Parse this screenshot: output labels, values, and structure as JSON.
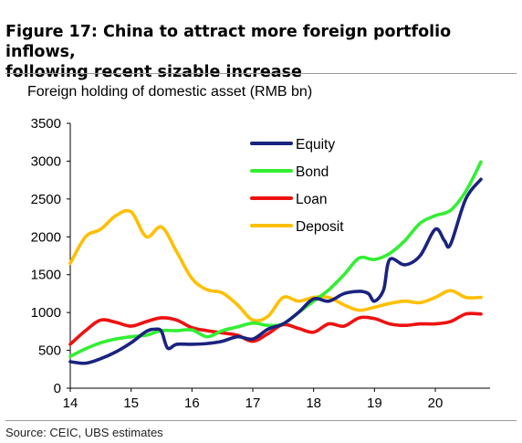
{
  "figure": {
    "title_line1": "Figure 17: China to attract more foreign portfolio inflows,",
    "title_line2": "following recent sizable increase",
    "subtitle": "Foreign holding of domestic asset (RMB bn)",
    "source": "Source: CEIC, UBS estimates"
  },
  "chart_data": {
    "type": "line",
    "title": "Figure 17: China to attract more foreign portfolio inflows, following recent sizable increase",
    "ylabel": "Foreign holding of domestic asset (RMB bn)",
    "xlabel": "",
    "ylim": [
      0,
      3500
    ],
    "yticks": [
      0,
      500,
      1000,
      1500,
      2000,
      2500,
      3000,
      3500
    ],
    "xlim": [
      2014.0,
      2020.9
    ],
    "xticks": [
      {
        "value": 2014,
        "label": "14"
      },
      {
        "value": 2015,
        "label": "15"
      },
      {
        "value": 2016,
        "label": "16"
      },
      {
        "value": 2017,
        "label": "17"
      },
      {
        "value": 2018,
        "label": "18"
      },
      {
        "value": 2019,
        "label": "19"
      },
      {
        "value": 2020,
        "label": "20"
      }
    ],
    "grid": false,
    "legend_position": "top-right",
    "series": [
      {
        "name": "Equity",
        "color": "#1a237e",
        "x": [
          2014.0,
          2014.25,
          2014.5,
          2014.75,
          2015.0,
          2015.25,
          2015.4,
          2015.5,
          2015.6,
          2015.75,
          2016.0,
          2016.25,
          2016.5,
          2016.75,
          2017.0,
          2017.25,
          2017.5,
          2017.75,
          2018.0,
          2018.25,
          2018.5,
          2018.75,
          2018.9,
          2019.0,
          2019.15,
          2019.25,
          2019.5,
          2019.75,
          2020.0,
          2020.15,
          2020.25,
          2020.5,
          2020.75
        ],
        "y": [
          350,
          330,
          390,
          480,
          600,
          750,
          780,
          750,
          530,
          580,
          580,
          590,
          620,
          680,
          650,
          780,
          850,
          1000,
          1180,
          1150,
          1250,
          1280,
          1250,
          1150,
          1300,
          1700,
          1630,
          1750,
          2100,
          1950,
          1900,
          2500,
          2760
        ]
      },
      {
        "name": "Bond",
        "color": "#33ee33",
        "x": [
          2014.0,
          2014.25,
          2014.5,
          2014.75,
          2015.0,
          2015.25,
          2015.5,
          2015.75,
          2016.0,
          2016.25,
          2016.5,
          2016.75,
          2017.0,
          2017.25,
          2017.5,
          2017.75,
          2018.0,
          2018.25,
          2018.5,
          2018.75,
          2019.0,
          2019.25,
          2019.5,
          2019.75,
          2020.0,
          2020.25,
          2020.5,
          2020.75
        ],
        "y": [
          420,
          520,
          600,
          650,
          680,
          700,
          760,
          760,
          770,
          680,
          760,
          810,
          860,
          830,
          850,
          1000,
          1150,
          1300,
          1500,
          1720,
          1700,
          1780,
          1950,
          2180,
          2280,
          2350,
          2600,
          2990
        ]
      },
      {
        "name": "Loan",
        "color": "#ee1111",
        "x": [
          2014.0,
          2014.25,
          2014.5,
          2014.75,
          2015.0,
          2015.25,
          2015.5,
          2015.75,
          2016.0,
          2016.25,
          2016.5,
          2016.75,
          2017.0,
          2017.25,
          2017.5,
          2017.75,
          2018.0,
          2018.25,
          2018.5,
          2018.75,
          2019.0,
          2019.25,
          2019.5,
          2019.75,
          2020.0,
          2020.25,
          2020.5,
          2020.75
        ],
        "y": [
          580,
          760,
          900,
          870,
          820,
          880,
          930,
          900,
          800,
          760,
          730,
          700,
          620,
          720,
          840,
          790,
          740,
          850,
          820,
          930,
          920,
          850,
          830,
          850,
          850,
          880,
          980,
          980
        ]
      },
      {
        "name": "Deposit",
        "color": "#ffbf00",
        "x": [
          2014.0,
          2014.25,
          2014.5,
          2014.75,
          2015.0,
          2015.25,
          2015.5,
          2015.75,
          2016.0,
          2016.25,
          2016.5,
          2016.75,
          2017.0,
          2017.25,
          2017.5,
          2017.75,
          2018.0,
          2018.25,
          2018.5,
          2018.75,
          2019.0,
          2019.25,
          2019.5,
          2019.75,
          2020.0,
          2020.25,
          2020.5,
          2020.75
        ],
        "y": [
          1650,
          2000,
          2100,
          2280,
          2330,
          2000,
          2130,
          1800,
          1450,
          1300,
          1260,
          1100,
          900,
          950,
          1200,
          1150,
          1200,
          1200,
          1100,
          1030,
          1070,
          1120,
          1150,
          1130,
          1200,
          1290,
          1200,
          1200
        ]
      }
    ]
  }
}
